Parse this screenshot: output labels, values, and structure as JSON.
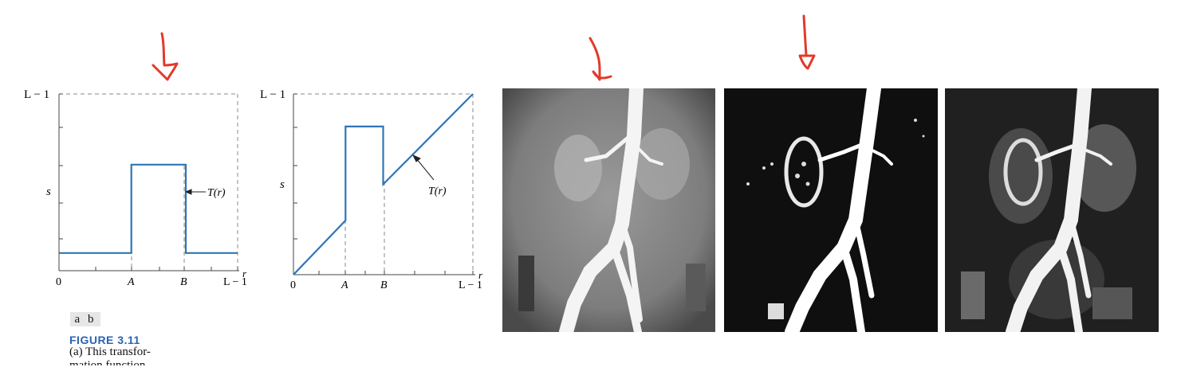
{
  "figure": {
    "panel_labels": "a b",
    "title": "FIGURE 3.11",
    "caption_line1": "(a) This transfor-",
    "caption_line2": "mation function"
  },
  "plot_a": {
    "y_top_label": "L − 1",
    "y_axis_label": "s",
    "x_axis_label": "r",
    "origin_label": "0",
    "x_ticks": [
      "A",
      "B",
      "L − 1"
    ],
    "curve_label": "T(r)"
  },
  "plot_b": {
    "y_top_label": "L − 1",
    "y_axis_label": "s",
    "x_axis_label": "r",
    "origin_label": "0",
    "x_ticks": [
      "A",
      "B",
      "L − 1"
    ],
    "curve_label": "T(r)"
  },
  "chart_data": [
    {
      "type": "line",
      "description_type": "intensity transformation",
      "x_ticks": [
        "0",
        "A",
        "B",
        "L − 1"
      ],
      "y_ticks": [
        "L − 1"
      ],
      "xlabel": "r",
      "ylabel": "s",
      "series": [
        {
          "name": "T(r)",
          "points": [
            [
              0,
              0.1
            ],
            [
              0.405,
              0.1
            ],
            [
              0.405,
              0.6
            ],
            [
              0.71,
              0.6
            ],
            [
              0.71,
              0.1
            ],
            [
              1,
              0.1
            ]
          ]
        }
      ],
      "xlim": [
        0,
        1
      ],
      "ylim": [
        0,
        1
      ]
    },
    {
      "type": "line",
      "description_type": "intensity transformation",
      "x_ticks": [
        "0",
        "A",
        "B",
        "L − 1"
      ],
      "y_ticks": [
        "L − 1"
      ],
      "xlabel": "r",
      "ylabel": "s",
      "series": [
        {
          "name": "T(r)",
          "points": [
            [
              0,
              0
            ],
            [
              0.29,
              0.3
            ],
            [
              0.29,
              0.82
            ],
            [
              0.5,
              0.82
            ],
            [
              0.5,
              0.5
            ],
            [
              1,
              1
            ]
          ]
        }
      ],
      "xlim": [
        0,
        1
      ],
      "ylim": [
        0,
        1
      ]
    }
  ],
  "colors": {
    "curve": "#2e75b6",
    "annotation_arrow": "#e23a2a"
  }
}
